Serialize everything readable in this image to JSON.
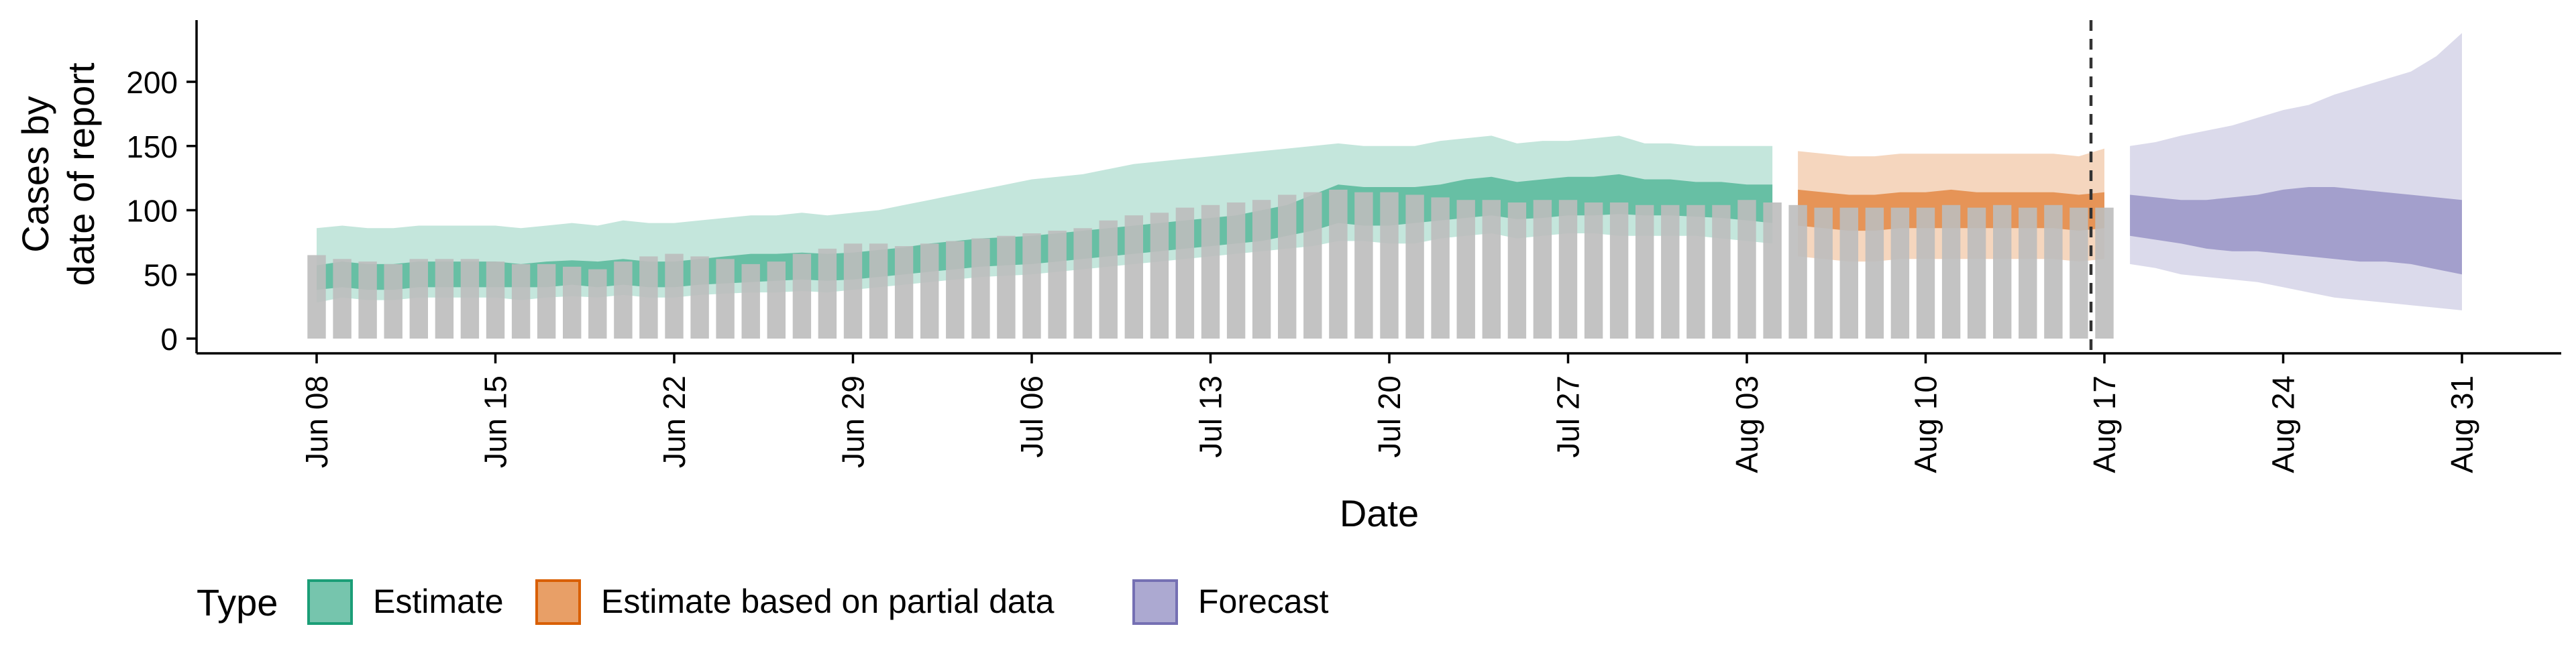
{
  "chart_data": {
    "type": "area",
    "title": "",
    "xlabel": "Date",
    "ylabel_lines": [
      "Cases by",
      "date of report"
    ],
    "legend_title": "Type",
    "legend_position": "bottom-left",
    "grid": false,
    "x_ticks": [
      "Jun 08",
      "Jun 15",
      "Jun 22",
      "Jun 29",
      "Jul 06",
      "Jul 13",
      "Jul 20",
      "Jul 27",
      "Aug 03",
      "Aug 10",
      "Aug 17",
      "Aug 24",
      "Aug 31"
    ],
    "x_range": [
      "2020-06-08",
      "2020-08-31"
    ],
    "y_ticks": [
      0,
      50,
      100,
      150,
      200
    ],
    "ylim": [
      -10,
      248
    ],
    "vline_date": "2020-08-17",
    "colors": {
      "estimate": "#1B9E77",
      "partial": "#D95F02",
      "forecast": "#7570B3",
      "bars": "#BDBDBD",
      "vline": "#333333"
    },
    "legend": [
      {
        "key": "estimate",
        "label": "Estimate"
      },
      {
        "key": "partial",
        "label": "Estimate based on partial data"
      },
      {
        "key": "forecast",
        "label": "Forecast"
      }
    ],
    "bars": {
      "start_date": "2020-06-08",
      "end_date": "2020-08-17",
      "values": [
        65,
        62,
        60,
        58,
        62,
        62,
        62,
        60,
        58,
        58,
        56,
        54,
        60,
        64,
        66,
        64,
        62,
        58,
        60,
        66,
        70,
        74,
        74,
        72,
        74,
        76,
        78,
        80,
        82,
        84,
        86,
        92,
        96,
        98,
        102,
        104,
        106,
        108,
        112,
        114,
        116,
        114,
        114,
        112,
        110,
        108,
        108,
        106,
        108,
        108,
        106,
        106,
        104,
        104,
        104,
        104,
        108,
        106,
        104,
        102,
        102,
        102,
        102,
        102,
        104,
        102,
        104,
        102,
        104,
        102,
        102
      ]
    },
    "series": [
      {
        "key": "estimate",
        "name": "Estimate",
        "start_date": "2020-06-08",
        "end_date": "2020-08-04",
        "median": [
          47,
          50,
          48,
          48,
          50,
          50,
          50,
          50,
          49,
          50,
          51,
          50,
          52,
          50,
          50,
          52,
          53,
          55,
          55,
          56,
          55,
          56,
          58,
          60,
          62,
          64,
          66,
          67,
          68,
          70,
          72,
          74,
          76,
          78,
          80,
          82,
          84,
          86,
          90,
          98,
          108,
          106,
          104,
          104,
          108,
          110,
          112,
          108,
          110,
          112,
          114,
          114,
          110,
          110,
          109,
          108,
          107,
          108
        ],
        "lower_50": [
          38,
          40,
          38,
          38,
          40,
          40,
          40,
          40,
          40,
          40,
          42,
          40,
          42,
          40,
          40,
          42,
          43,
          44,
          45,
          46,
          45,
          46,
          48,
          50,
          52,
          54,
          56,
          57,
          58,
          60,
          62,
          64,
          66,
          68,
          70,
          72,
          74,
          76,
          80,
          84,
          90,
          88,
          88,
          90,
          92,
          94,
          96,
          93,
          94,
          96,
          96,
          97,
          96,
          96,
          95,
          94,
          92,
          90
        ],
        "upper_50": [
          57,
          60,
          58,
          58,
          60,
          60,
          60,
          60,
          58,
          60,
          61,
          60,
          62,
          60,
          60,
          62,
          64,
          66,
          66,
          67,
          66,
          67,
          69,
          71,
          74,
          76,
          78,
          79,
          80,
          82,
          84,
          86,
          88,
          90,
          92,
          94,
          96,
          100,
          104,
          112,
          120,
          118,
          118,
          118,
          120,
          124,
          126,
          122,
          124,
          126,
          126,
          128,
          124,
          124,
          122,
          122,
          120,
          120
        ],
        "lower_90": [
          28,
          32,
          30,
          30,
          32,
          32,
          32,
          32,
          30,
          32,
          33,
          32,
          34,
          32,
          32,
          34,
          35,
          36,
          36,
          37,
          36,
          38,
          40,
          42,
          44,
          46,
          48,
          49,
          50,
          52,
          54,
          56,
          58,
          60,
          62,
          64,
          66,
          68,
          70,
          72,
          76,
          76,
          74,
          74,
          78,
          80,
          82,
          78,
          80,
          82,
          82,
          80,
          80,
          80,
          80,
          78,
          76,
          74
        ],
        "upper_90": [
          86,
          88,
          86,
          86,
          88,
          88,
          88,
          88,
          86,
          88,
          90,
          88,
          92,
          90,
          90,
          92,
          94,
          96,
          96,
          98,
          96,
          98,
          100,
          104,
          108,
          112,
          116,
          120,
          124,
          126,
          128,
          132,
          136,
          138,
          140,
          142,
          144,
          146,
          148,
          150,
          152,
          150,
          150,
          150,
          154,
          156,
          158,
          152,
          154,
          154,
          156,
          158,
          152,
          152,
          150,
          150,
          150,
          150
        ]
      },
      {
        "key": "partial",
        "name": "Estimate based on partial data",
        "start_date": "2020-08-05",
        "end_date": "2020-08-17",
        "median": [
          102,
          100,
          98,
          98,
          100,
          100,
          100,
          100,
          100,
          100,
          100,
          98,
          100
        ],
        "lower_50": [
          88,
          86,
          84,
          84,
          86,
          86,
          86,
          86,
          86,
          86,
          86,
          84,
          86
        ],
        "upper_50": [
          116,
          114,
          112,
          112,
          114,
          114,
          116,
          114,
          114,
          114,
          114,
          112,
          114
        ],
        "lower_90": [
          64,
          62,
          60,
          60,
          62,
          62,
          62,
          62,
          62,
          62,
          62,
          60,
          62
        ],
        "upper_90": [
          146,
          144,
          142,
          142,
          144,
          144,
          144,
          144,
          144,
          144,
          144,
          142,
          148
        ]
      },
      {
        "key": "forecast",
        "name": "Forecast",
        "start_date": "2020-08-18",
        "end_date": "2020-08-31",
        "median": [
          95,
          92,
          90,
          88,
          88,
          88,
          90,
          90,
          92,
          90,
          88,
          86,
          82,
          80
        ],
        "lower_50": [
          80,
          77,
          74,
          70,
          68,
          68,
          66,
          64,
          62,
          60,
          60,
          58,
          54,
          50
        ],
        "upper_50": [
          112,
          110,
          108,
          108,
          110,
          112,
          116,
          118,
          118,
          116,
          114,
          112,
          110,
          108
        ],
        "lower_90": [
          58,
          55,
          50,
          48,
          46,
          44,
          40,
          36,
          32,
          30,
          28,
          26,
          24,
          22
        ],
        "upper_90": [
          150,
          153,
          158,
          162,
          166,
          172,
          178,
          182,
          190,
          196,
          202,
          208,
          220,
          238
        ]
      }
    ]
  }
}
